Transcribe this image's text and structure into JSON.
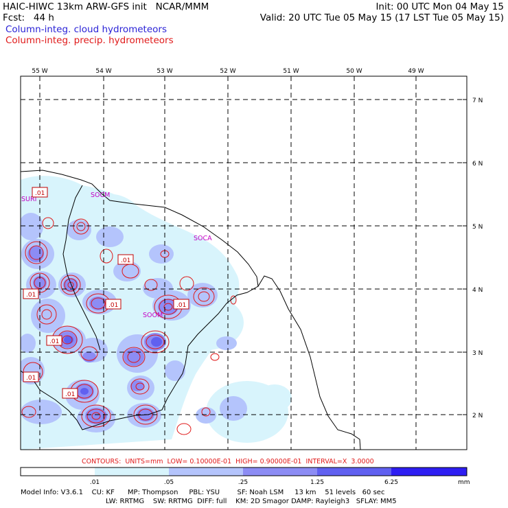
{
  "header": {
    "line1_left": "HAIC-HIWC 13km ARW-GFS init   NCAR/MMM",
    "line1_right": "Init: 00 UTC Mon 04 May 15",
    "line2_left": "Fcst:   44 h",
    "line2_right": "Valid: 20 UTC Tue 05 May 15 (17 LST Tue 05 May 15)",
    "legend_cloud": "Column-integ. cloud hydrometeors",
    "legend_precip": "Column-integ. precip. hydrometeors"
  },
  "axes": {
    "lon_labels": [
      "55 W",
      "54 W",
      "53 W",
      "52 W",
      "51 W",
      "50 W",
      "49 W"
    ],
    "lat_labels": [
      "7 N",
      "6 N",
      "5 N",
      "4 N",
      "3 N",
      "2 N"
    ]
  },
  "places": [
    "SURI",
    "SOCM",
    "SOCA",
    "SOOM"
  ],
  "contour_label": ".01",
  "contours_text": "CONTOURS:  UNITS=mm  LOW= 0.10000E-01  HIGH= 0.90000E-01  INTERVAL=X  3.0000",
  "colorbar": {
    "ticks": [
      ".01",
      ".05",
      ".25",
      "1.25",
      "6.25"
    ],
    "unit": "mm",
    "colors": [
      "#ffffff",
      "#d8f4fc",
      "#b4c4fc",
      "#8c8cf4",
      "#6060f0",
      "#2e1ef2"
    ]
  },
  "footer": {
    "line1": "Model Info: V3.6.1    CU: KF      MP: Thompson     PBL: YSU        SF: Noah LSM     13 km    51 levels   60 sec",
    "line2": "LW: RRTMG    SW: RRTMG  DIFF: full    KM: 2D Smagor DAMP: Rayleigh3   SFLAY: MM5"
  }
}
